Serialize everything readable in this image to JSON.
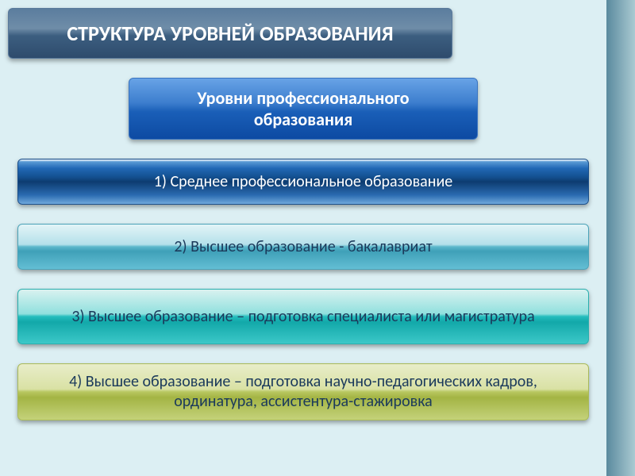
{
  "slide": {
    "background_main": "#dceff3",
    "background_sidebar_from": "#5a8a9e",
    "background_sidebar_to": "#aacad2"
  },
  "title": {
    "text": "СТРУКТУРА УРОВНЕЙ ОБРАЗОВАНИЯ",
    "color": "#ffffff",
    "fontsize": 26,
    "bg_colors": [
      "#5b7d9e",
      "#6f8da8",
      "#3c5e80",
      "#2e4b6c"
    ]
  },
  "subtitle": {
    "text": "Уровни профессионального образования",
    "color": "#ffffff",
    "fontsize": 22,
    "bg_colors": [
      "#68a3e6",
      "#3d7ece",
      "#1a5fb8",
      "#0d4aa2"
    ]
  },
  "rows": [
    {
      "text": "1) Среднее профессиональное образование",
      "text_color": "#ffffff",
      "bg_colors": [
        "#e0edf6",
        "#5a9bd5",
        "#0d3c70",
        "#6fa8dc"
      ],
      "border": "#1b4f8a"
    },
    {
      "text": "2) Высшее образование - бакалавриат",
      "text_color": "#1b3a5b",
      "bg_colors": [
        "#e3f4f7",
        "#b4e0ea",
        "#3fa0b8",
        "#63bed4"
      ],
      "border": "#4ba3b9"
    },
    {
      "text": "3) Высшее образование – подготовка специалиста или магистратура",
      "text_color": "#1b3a5b",
      "bg_colors": [
        "#d9f2f0",
        "#90e0de",
        "#12a8a9",
        "#3cc8c8"
      ],
      "border": "#2aaeae"
    },
    {
      "text": "4) Высшее образование – подготовка научно-педагогических кадров, ординатура, ассистентура-стажировка",
      "text_color": "#1b3a5b",
      "bg_colors": [
        "#e8edc9",
        "#d9e1a4",
        "#a3b444",
        "#c4d27a"
      ],
      "border": "#a9b959"
    }
  ],
  "structure_type": "infographic",
  "box_style": {
    "border_radius": 6,
    "shadow": "0 3px 6px rgba(0,0,0,0.35)",
    "font_family": "Calibri, Arial, sans-serif",
    "body_fontsize": 20
  }
}
